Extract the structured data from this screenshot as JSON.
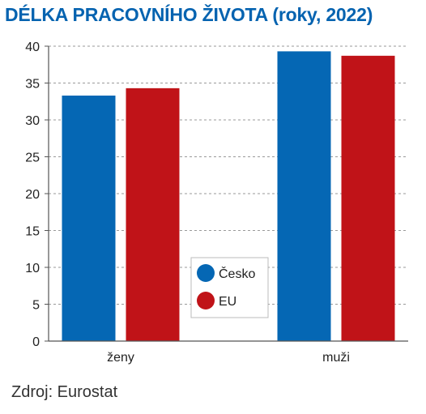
{
  "chart_data": {
    "type": "bar",
    "title": "DÉLKA PRACOVNÍHO ŽIVOTA (roky, 2022)",
    "categories": [
      "ženy",
      "muži"
    ],
    "series": [
      {
        "name": "Česko",
        "values": [
          33.3,
          39.3
        ],
        "color": "#0567b4"
      },
      {
        "name": "EU",
        "values": [
          34.3,
          38.7
        ],
        "color": "#c01318"
      }
    ],
    "ylim": [
      0,
      40
    ],
    "yticks": [
      0,
      5,
      10,
      15,
      20,
      25,
      30,
      35,
      40
    ],
    "grid": true,
    "legend_position": "center"
  },
  "source": "Zdroj: Eurostat"
}
